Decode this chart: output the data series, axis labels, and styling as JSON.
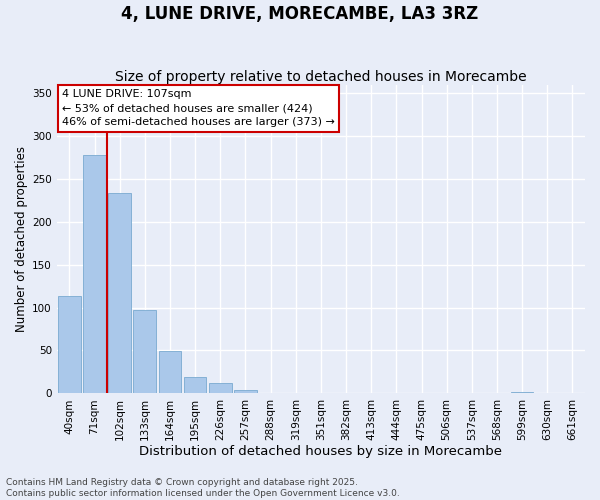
{
  "title": "4, LUNE DRIVE, MORECAMBE, LA3 3RZ",
  "subtitle": "Size of property relative to detached houses in Morecambe",
  "xlabel": "Distribution of detached houses by size in Morecambe",
  "ylabel": "Number of detached properties",
  "categories": [
    "40sqm",
    "71sqm",
    "102sqm",
    "133sqm",
    "164sqm",
    "195sqm",
    "226sqm",
    "257sqm",
    "288sqm",
    "319sqm",
    "351sqm",
    "382sqm",
    "413sqm",
    "444sqm",
    "475sqm",
    "506sqm",
    "537sqm",
    "568sqm",
    "599sqm",
    "630sqm",
    "661sqm"
  ],
  "values": [
    113,
    278,
    234,
    97,
    49,
    19,
    12,
    4,
    0,
    0,
    0,
    0,
    0,
    0,
    0,
    0,
    0,
    0,
    2,
    0,
    0
  ],
  "bar_color": "#aac8ea",
  "bar_edge_color": "#7aaad0",
  "background_color": "#e8edf8",
  "grid_color": "#ffffff",
  "vline_x": 1.5,
  "vline_color": "#cc0000",
  "annotation_text": "4 LUNE DRIVE: 107sqm\n← 53% of detached houses are smaller (424)\n46% of semi-detached houses are larger (373) →",
  "annotation_box_facecolor": "#ffffff",
  "annotation_box_edgecolor": "#cc0000",
  "ylim": [
    0,
    360
  ],
  "yticks": [
    0,
    50,
    100,
    150,
    200,
    250,
    300,
    350
  ],
  "footnote": "Contains HM Land Registry data © Crown copyright and database right 2025.\nContains public sector information licensed under the Open Government Licence v3.0.",
  "title_fontsize": 12,
  "subtitle_fontsize": 10,
  "xlabel_fontsize": 9.5,
  "ylabel_fontsize": 8.5,
  "tick_fontsize": 7.5,
  "annotation_fontsize": 8,
  "footnote_fontsize": 6.5
}
